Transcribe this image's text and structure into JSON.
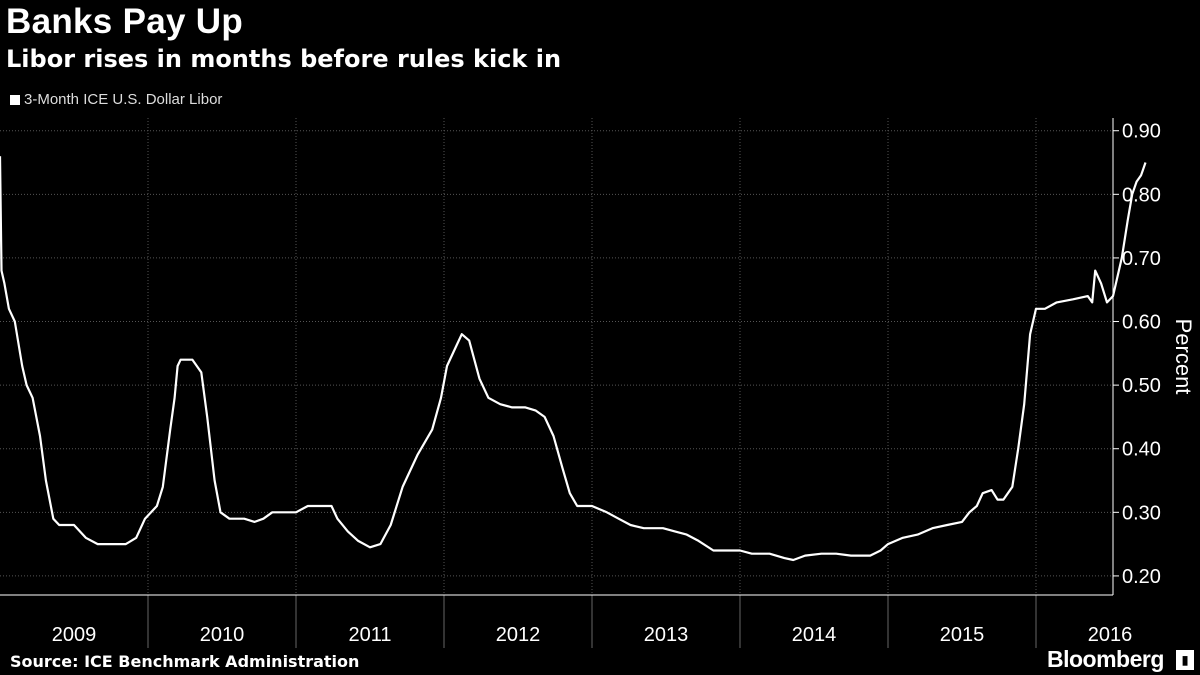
{
  "header": {
    "title": "Banks Pay Up",
    "subtitle": "Libor rises in months before rules kick in"
  },
  "footer": {
    "source": "Source: ICE Benchmark Administration",
    "brand": "Bloomberg",
    "brand_icon": "bloomberg-terminal-icon"
  },
  "colors": {
    "background": "#000000",
    "line": "#ffffff",
    "grid": "#555555"
  },
  "chart_data": {
    "type": "line",
    "ylabel": "Percent",
    "xlabel": "",
    "ylim": [
      0.17,
      0.92
    ],
    "yticks": [
      "0.20",
      "0.30",
      "0.40",
      "0.50",
      "0.60",
      "0.70",
      "0.80",
      "0.90"
    ],
    "ytick_values": [
      0.2,
      0.3,
      0.4,
      0.5,
      0.6,
      0.7,
      0.8,
      0.9
    ],
    "xlim": [
      2009.0,
      2016.74
    ],
    "x_categories": [
      "2009",
      "2010",
      "2011",
      "2012",
      "2013",
      "2014",
      "2015",
      "2016"
    ],
    "legend": "top-left",
    "grid": true,
    "series": [
      {
        "name": "3-Month ICE U.S. Dollar Libor",
        "points": [
          [
            2009.0,
            0.86
          ],
          [
            2009.01,
            0.68
          ],
          [
            2009.03,
            0.66
          ],
          [
            2009.06,
            0.62
          ],
          [
            2009.1,
            0.6
          ],
          [
            2009.15,
            0.53
          ],
          [
            2009.18,
            0.5
          ],
          [
            2009.22,
            0.48
          ],
          [
            2009.27,
            0.42
          ],
          [
            2009.31,
            0.35
          ],
          [
            2009.36,
            0.29
          ],
          [
            2009.4,
            0.28
          ],
          [
            2009.5,
            0.28
          ],
          [
            2009.58,
            0.26
          ],
          [
            2009.66,
            0.25
          ],
          [
            2009.75,
            0.25
          ],
          [
            2009.85,
            0.25
          ],
          [
            2009.92,
            0.26
          ],
          [
            2009.98,
            0.29
          ],
          [
            2010.06,
            0.31
          ],
          [
            2010.1,
            0.34
          ],
          [
            2010.15,
            0.43
          ],
          [
            2010.18,
            0.48
          ],
          [
            2010.2,
            0.53
          ],
          [
            2010.22,
            0.54
          ],
          [
            2010.3,
            0.54
          ],
          [
            2010.36,
            0.52
          ],
          [
            2010.4,
            0.45
          ],
          [
            2010.45,
            0.35
          ],
          [
            2010.49,
            0.3
          ],
          [
            2010.55,
            0.29
          ],
          [
            2010.65,
            0.29
          ],
          [
            2010.72,
            0.285
          ],
          [
            2010.78,
            0.29
          ],
          [
            2010.84,
            0.3
          ],
          [
            2010.92,
            0.3
          ],
          [
            2011.0,
            0.3
          ],
          [
            2011.08,
            0.31
          ],
          [
            2011.16,
            0.31
          ],
          [
            2011.24,
            0.31
          ],
          [
            2011.28,
            0.29
          ],
          [
            2011.35,
            0.27
          ],
          [
            2011.42,
            0.255
          ],
          [
            2011.5,
            0.245
          ],
          [
            2011.57,
            0.25
          ],
          [
            2011.64,
            0.28
          ],
          [
            2011.72,
            0.34
          ],
          [
            2011.82,
            0.39
          ],
          [
            2011.92,
            0.43
          ],
          [
            2011.98,
            0.48
          ],
          [
            2012.02,
            0.53
          ],
          [
            2012.08,
            0.56
          ],
          [
            2012.12,
            0.58
          ],
          [
            2012.17,
            0.57
          ],
          [
            2012.24,
            0.51
          ],
          [
            2012.3,
            0.48
          ],
          [
            2012.38,
            0.47
          ],
          [
            2012.46,
            0.465
          ],
          [
            2012.55,
            0.465
          ],
          [
            2012.62,
            0.46
          ],
          [
            2012.68,
            0.45
          ],
          [
            2012.74,
            0.42
          ],
          [
            2012.8,
            0.37
          ],
          [
            2012.85,
            0.33
          ],
          [
            2012.9,
            0.31
          ],
          [
            2013.0,
            0.31
          ],
          [
            2013.1,
            0.3
          ],
          [
            2013.18,
            0.29
          ],
          [
            2013.26,
            0.28
          ],
          [
            2013.35,
            0.275
          ],
          [
            2013.48,
            0.275
          ],
          [
            2013.56,
            0.27
          ],
          [
            2013.64,
            0.265
          ],
          [
            2013.72,
            0.255
          ],
          [
            2013.82,
            0.24
          ],
          [
            2013.92,
            0.24
          ],
          [
            2014.0,
            0.24
          ],
          [
            2014.08,
            0.235
          ],
          [
            2014.2,
            0.235
          ],
          [
            2014.3,
            0.228
          ],
          [
            2014.36,
            0.225
          ],
          [
            2014.44,
            0.232
          ],
          [
            2014.55,
            0.235
          ],
          [
            2014.65,
            0.235
          ],
          [
            2014.75,
            0.232
          ],
          [
            2014.88,
            0.232
          ],
          [
            2014.95,
            0.24
          ],
          [
            2015.0,
            0.25
          ],
          [
            2015.1,
            0.26
          ],
          [
            2015.2,
            0.265
          ],
          [
            2015.3,
            0.275
          ],
          [
            2015.4,
            0.28
          ],
          [
            2015.5,
            0.285
          ],
          [
            2015.55,
            0.3
          ],
          [
            2015.6,
            0.31
          ],
          [
            2015.64,
            0.33
          ],
          [
            2015.7,
            0.335
          ],
          [
            2015.74,
            0.32
          ],
          [
            2015.78,
            0.32
          ],
          [
            2015.84,
            0.34
          ],
          [
            2015.88,
            0.4
          ],
          [
            2015.92,
            0.47
          ],
          [
            2015.96,
            0.58
          ],
          [
            2016.0,
            0.62
          ],
          [
            2016.06,
            0.62
          ],
          [
            2016.14,
            0.63
          ],
          [
            2016.25,
            0.635
          ],
          [
            2016.35,
            0.64
          ],
          [
            2016.38,
            0.63
          ],
          [
            2016.4,
            0.68
          ],
          [
            2016.44,
            0.66
          ],
          [
            2016.48,
            0.63
          ],
          [
            2016.52,
            0.64
          ],
          [
            2016.58,
            0.7
          ],
          [
            2016.62,
            0.76
          ],
          [
            2016.65,
            0.8
          ],
          [
            2016.68,
            0.82
          ],
          [
            2016.71,
            0.83
          ],
          [
            2016.74,
            0.85
          ]
        ]
      }
    ]
  }
}
